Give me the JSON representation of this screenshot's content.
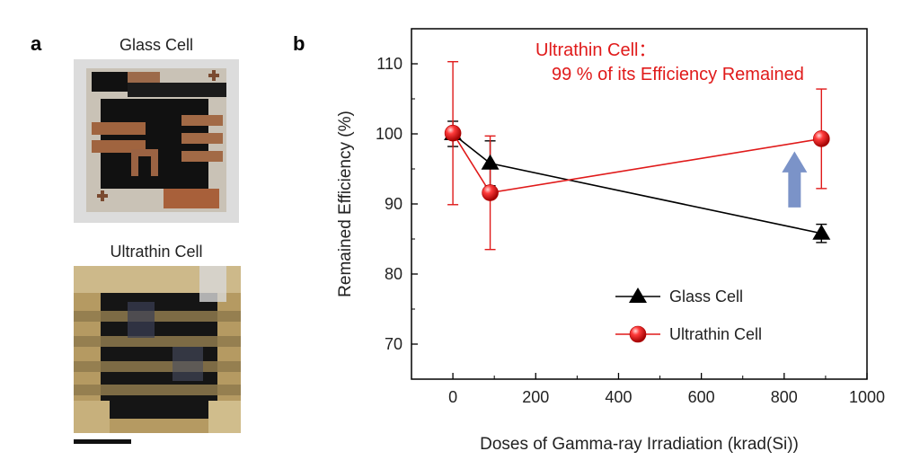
{
  "panel_a": {
    "label": "a",
    "glass_title": "Glass Cell",
    "ultrathin_title": "Ultrathin Cell"
  },
  "panel_b": {
    "label": "b"
  },
  "colors": {
    "glass": "#000000",
    "ultrathin": "#e01a1a",
    "arrow": "#7b93c8",
    "annotation": "#e01a1a"
  },
  "chart_data": {
    "type": "line",
    "xlabel": "Doses of Gamma-ray Irradiation (krad(Si))",
    "ylabel": "Remained Efficiency  (%)",
    "xlim": [
      -100,
      1000
    ],
    "ylim": [
      65,
      115
    ],
    "xticks": [
      0,
      200,
      400,
      600,
      800,
      1000
    ],
    "yticks": [
      70,
      80,
      90,
      100,
      110
    ],
    "grid": false,
    "legend": "bottom-right",
    "annotation": {
      "line1": "Ultrathin Cell：",
      "line2": "99 % of its Efficiency Remained"
    },
    "series": [
      {
        "name": "Glass Cell",
        "marker": "triangle",
        "x": [
          0,
          90,
          890
        ],
        "y": [
          100,
          95.8,
          85.8
        ],
        "err": [
          1.8,
          3.2,
          1.3
        ]
      },
      {
        "name": "Ultrathin Cell",
        "marker": "sphere",
        "x": [
          0,
          90,
          890
        ],
        "y": [
          100.1,
          91.6,
          99.3
        ],
        "err": [
          10.2,
          8.1,
          7.1
        ]
      }
    ]
  }
}
